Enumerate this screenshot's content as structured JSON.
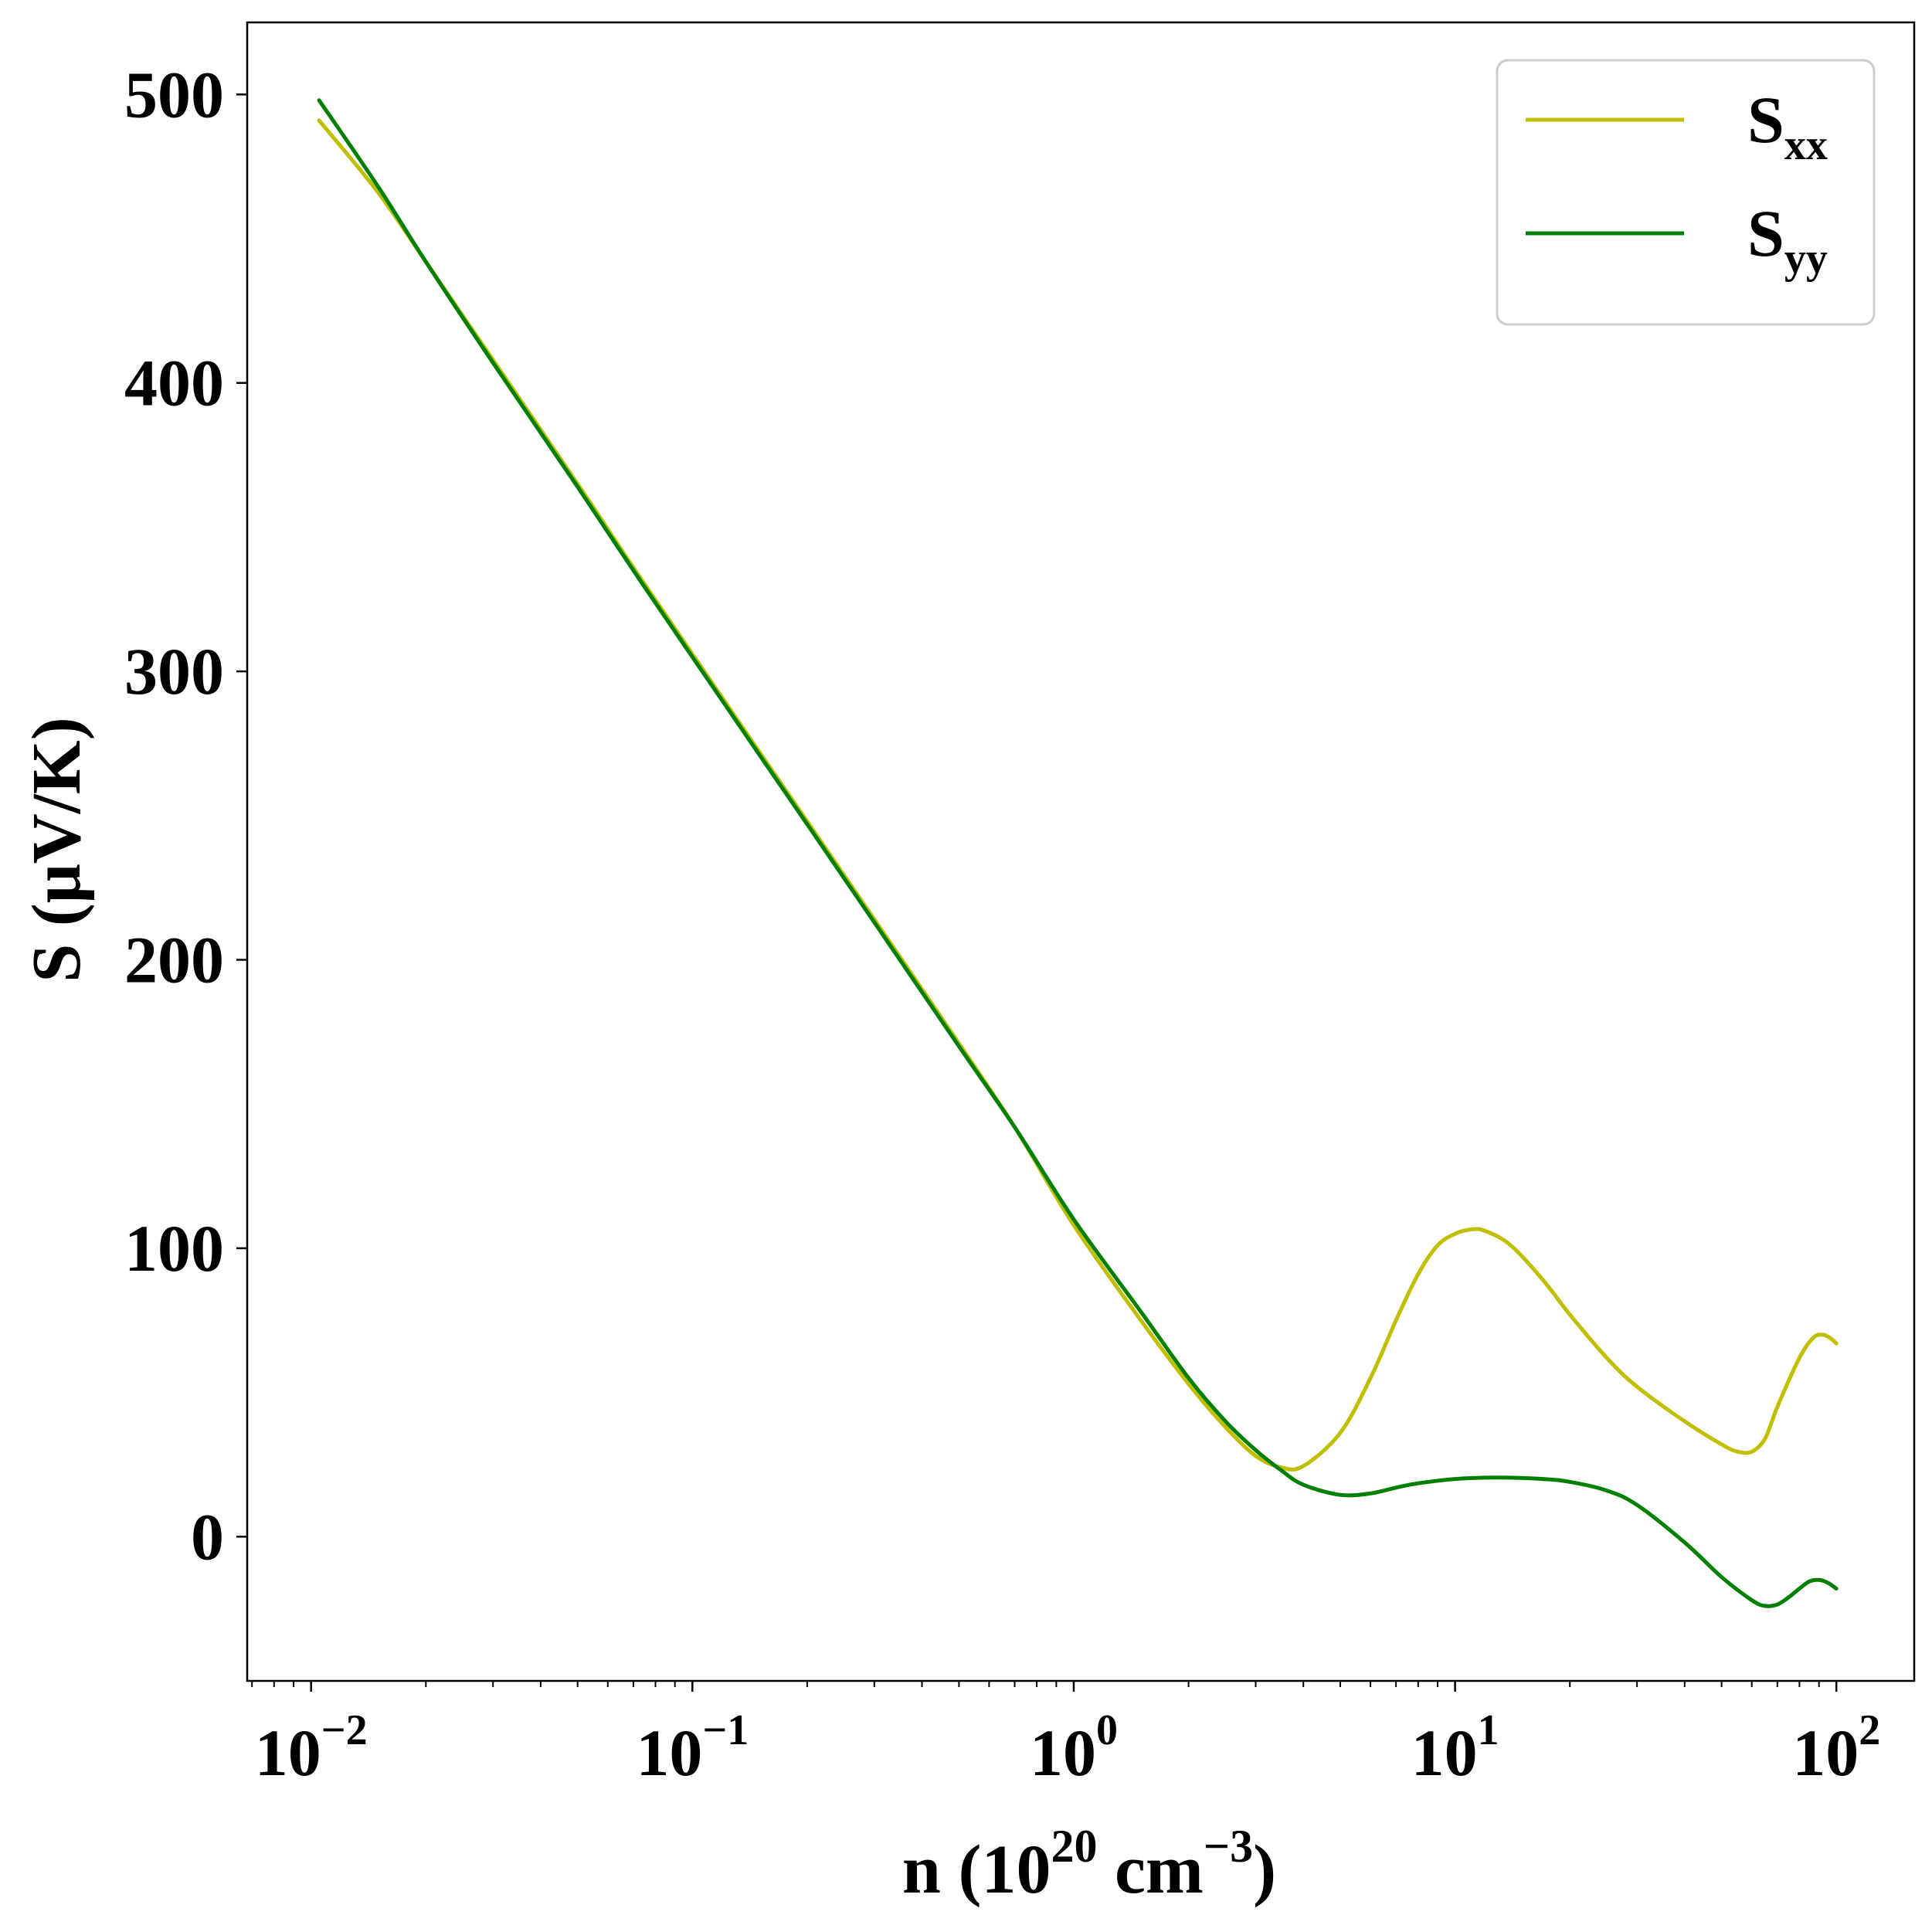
{
  "chart_data": {
    "type": "line",
    "xscale": "log",
    "xlim": [
      0.0068,
      160
    ],
    "ylim": [
      -50,
      525
    ],
    "xlabel": {
      "main": "n (10",
      "sup1": "20",
      "mid": " cm",
      "sup2": "−3",
      "end": ")"
    },
    "ylabel": "S (μV/K)",
    "xticks": [
      {
        "value": 0.01,
        "base": "10",
        "exp": "−2"
      },
      {
        "value": 0.1,
        "base": "10",
        "exp": "−1"
      },
      {
        "value": 1,
        "base": "10",
        "exp": "0"
      },
      {
        "value": 10,
        "base": "10",
        "exp": "1"
      },
      {
        "value": 100,
        "base": "10",
        "exp": "2"
      }
    ],
    "yticks": [
      0,
      100,
      200,
      300,
      400,
      500
    ],
    "ytick_labels": [
      "0",
      "100",
      "200",
      "300",
      "400",
      "500"
    ],
    "grid": false,
    "legend_position": "top-right",
    "series": [
      {
        "name": "S",
        "sub": "xx",
        "color": "#bfbf00",
        "points": [
          [
            0.0105,
            491
          ],
          [
            0.015,
            466
          ],
          [
            0.02,
            442
          ],
          [
            0.03,
            408
          ],
          [
            0.05,
            365
          ],
          [
            0.07,
            336
          ],
          [
            0.1,
            306
          ],
          [
            0.15,
            272
          ],
          [
            0.2,
            248
          ],
          [
            0.3,
            214
          ],
          [
            0.5,
            171
          ],
          [
            0.7,
            142
          ],
          [
            1.0,
            108
          ],
          [
            1.5,
            75
          ],
          [
            2.0,
            53
          ],
          [
            2.5,
            38
          ],
          [
            3.0,
            28
          ],
          [
            3.5,
            24
          ],
          [
            4.0,
            24.5
          ],
          [
            5.0,
            36
          ],
          [
            6.0,
            55
          ],
          [
            7.0,
            75
          ],
          [
            8.0,
            91
          ],
          [
            9.0,
            101
          ],
          [
            10.0,
            105
          ],
          [
            11.0,
            106.5
          ],
          [
            12.0,
            106
          ],
          [
            14.0,
            101
          ],
          [
            17.0,
            89
          ],
          [
            20.0,
            77
          ],
          [
            25.0,
            62
          ],
          [
            30.0,
            52
          ],
          [
            40.0,
            40
          ],
          [
            50.0,
            32
          ],
          [
            55.0,
            29.5
          ],
          [
            60.0,
            29.5
          ],
          [
            65.0,
            34
          ],
          [
            70.0,
            45
          ],
          [
            80.0,
            62
          ],
          [
            87.0,
            69
          ],
          [
            92.0,
            70
          ],
          [
            96.0,
            69
          ],
          [
            100.0,
            67
          ]
        ]
      },
      {
        "name": "S",
        "sub": "yy",
        "color": "#008000",
        "points": [
          [
            0.0105,
            498
          ],
          [
            0.015,
            468
          ],
          [
            0.02,
            442
          ],
          [
            0.03,
            407
          ],
          [
            0.05,
            364
          ],
          [
            0.07,
            335
          ],
          [
            0.1,
            305
          ],
          [
            0.15,
            271
          ],
          [
            0.2,
            247
          ],
          [
            0.3,
            213
          ],
          [
            0.5,
            170
          ],
          [
            0.7,
            142
          ],
          [
            1.0,
            110
          ],
          [
            1.5,
            78
          ],
          [
            2.0,
            55
          ],
          [
            2.5,
            40
          ],
          [
            3.0,
            30
          ],
          [
            3.5,
            23
          ],
          [
            4.0,
            18
          ],
          [
            5.0,
            14.5
          ],
          [
            6.0,
            15
          ],
          [
            7.0,
            17
          ],
          [
            8.0,
            18.5
          ],
          [
            10.0,
            20
          ],
          [
            13.0,
            20.5
          ],
          [
            17.0,
            20
          ],
          [
            20.0,
            19
          ],
          [
            25.0,
            16
          ],
          [
            30.0,
            11
          ],
          [
            40.0,
            -2
          ],
          [
            50.0,
            -14
          ],
          [
            60.0,
            -22
          ],
          [
            65.0,
            -24
          ],
          [
            70.0,
            -23.5
          ],
          [
            75.0,
            -21
          ],
          [
            80.0,
            -18
          ],
          [
            85.0,
            -15.5
          ],
          [
            90.0,
            -15
          ],
          [
            95.0,
            -16
          ],
          [
            100.0,
            -18
          ]
        ]
      }
    ]
  }
}
